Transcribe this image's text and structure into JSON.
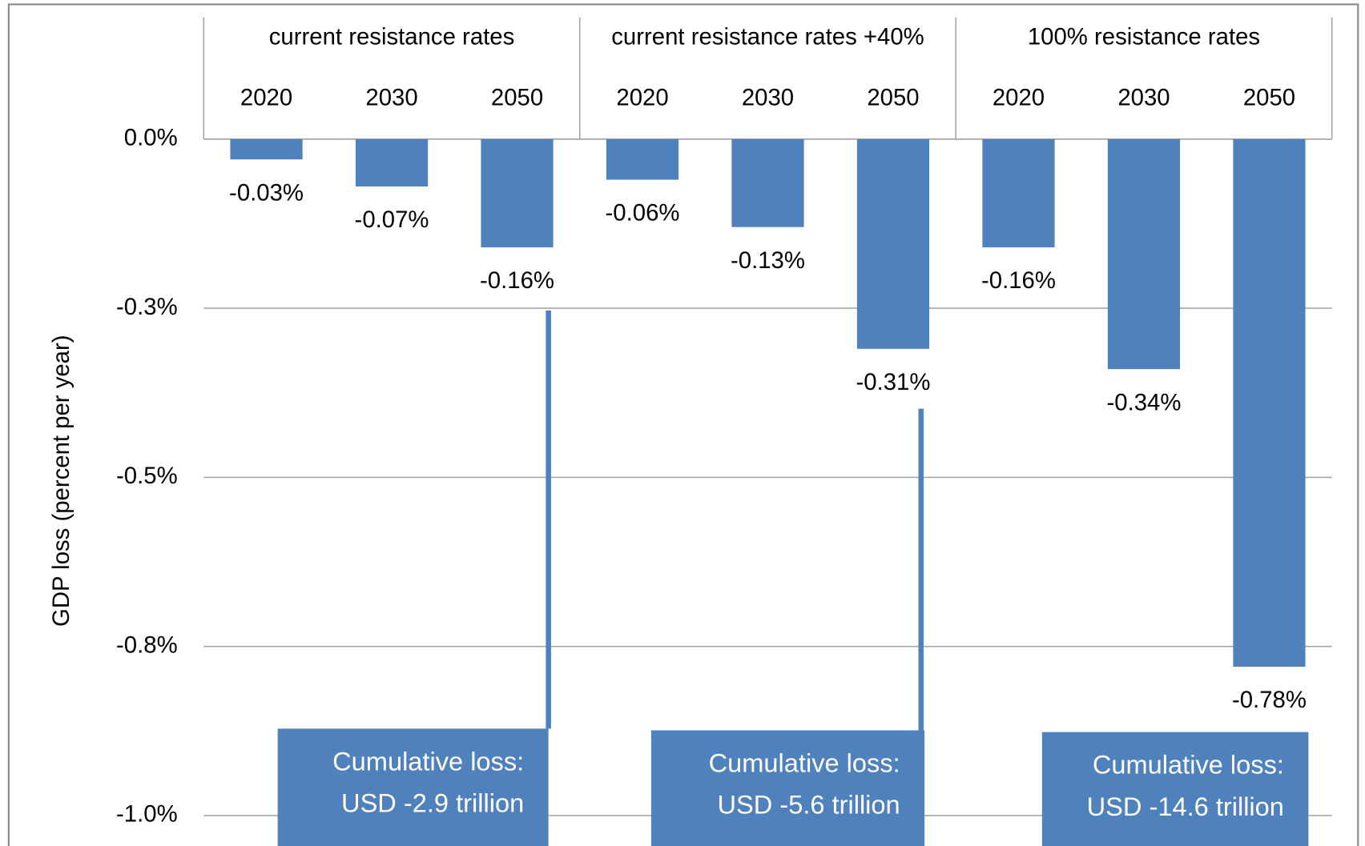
{
  "chart_data": {
    "type": "bar",
    "y_label": "GDP loss (percent  per year)",
    "groups": [
      "current resistance rates",
      "current resistance rates +40%",
      "100% resistance rates"
    ],
    "categories": [
      "2020",
      "2030",
      "2050",
      "2020",
      "2030",
      "2050",
      "2020",
      "2030",
      "2050"
    ],
    "values": [
      -0.03,
      -0.07,
      -0.16,
      -0.06,
      -0.13,
      -0.31,
      -0.16,
      -0.34,
      -0.78
    ],
    "value_labels": [
      "-0.03%",
      "-0.07%",
      "-0.16%",
      "-0.06%",
      "-0.13%",
      "-0.31%",
      "-0.16%",
      "-0.34%",
      "-0.78%"
    ],
    "color": "#4f81bd",
    "ylim": [
      -1.045,
      0
    ],
    "yticks": [
      {
        "value": 0,
        "label": "0.0%"
      },
      {
        "value": -0.25,
        "label": "-0.3%"
      },
      {
        "value": -0.5,
        "label": "-0.5%"
      },
      {
        "value": -0.75,
        "label": "-0.8%"
      },
      {
        "value": -1.0,
        "label": "-1.0%"
      }
    ],
    "grid": true,
    "annotations": [
      {
        "lines": [
          "Cumulative loss:",
          "USD -2.9 trillion"
        ]
      },
      {
        "lines": [
          "Cumulative loss:",
          "USD -5.6 trillion"
        ]
      },
      {
        "lines": [
          "Cumulative loss:",
          "USD -14.6 trillion"
        ]
      }
    ]
  }
}
